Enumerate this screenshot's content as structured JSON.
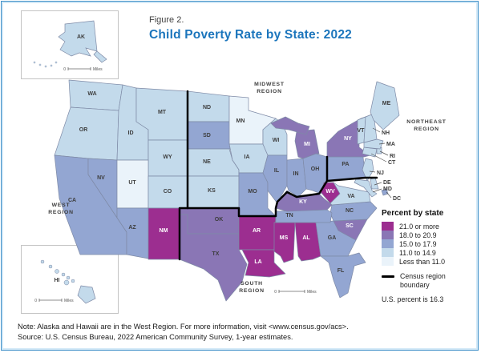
{
  "title": {
    "figure": "Figure 2.",
    "text": "Child Poverty Rate by State: 2022",
    "color": "#1b75bc"
  },
  "region_labels": {
    "west": "WEST REGION",
    "midwest": "MIDWEST REGION",
    "northeast": "NORTHEAST REGION",
    "south": "SOUTH REGION"
  },
  "legend": {
    "title": "Percent by state",
    "classes": [
      {
        "label": "21.0 or more",
        "color": "#9c2e90"
      },
      {
        "label": "18.0 to 20.9",
        "color": "#8a76b5"
      },
      {
        "label": "15.0 to 17.9",
        "color": "#93a6d2"
      },
      {
        "label": "11.0 to 14.9",
        "color": "#c3daeb"
      },
      {
        "label": "Less than 11.0",
        "color": "#eaf3fa"
      }
    ],
    "boundary_label": "Census region boundary",
    "boundary_color": "#000000",
    "us_percent": "U.S. percent is 16.3"
  },
  "scale": {
    "zero": "0",
    "unit": "Miles"
  },
  "insets": {
    "ak": "AK",
    "hi": "HI"
  },
  "chart_data": {
    "type": "heatmap",
    "title": "Child Poverty Rate by State: 2022",
    "legend_title": "Percent by state",
    "bins": [
      "21.0 or more",
      "18.0 to 20.9",
      "15.0 to 17.9",
      "11.0 to 14.9",
      "Less than 11.0"
    ],
    "us_percent": 16.3,
    "notes": "Alaska and Hawaii are in the West Region."
  },
  "map": {
    "states": [
      {
        "abbr": "WA",
        "cat": 3
      },
      {
        "abbr": "OR",
        "cat": 3
      },
      {
        "abbr": "CA",
        "cat": 2
      },
      {
        "abbr": "NV",
        "cat": 2
      },
      {
        "abbr": "ID",
        "cat": 3
      },
      {
        "abbr": "MT",
        "cat": 3
      },
      {
        "abbr": "WY",
        "cat": 3
      },
      {
        "abbr": "UT",
        "cat": 4
      },
      {
        "abbr": "CO",
        "cat": 3
      },
      {
        "abbr": "AZ",
        "cat": 2
      },
      {
        "abbr": "NM",
        "cat": 0
      },
      {
        "abbr": "ND",
        "cat": 3
      },
      {
        "abbr": "SD",
        "cat": 2
      },
      {
        "abbr": "NE",
        "cat": 3
      },
      {
        "abbr": "KS",
        "cat": 3
      },
      {
        "abbr": "MN",
        "cat": 4
      },
      {
        "abbr": "IA",
        "cat": 3
      },
      {
        "abbr": "MO",
        "cat": 2
      },
      {
        "abbr": "WI",
        "cat": 3
      },
      {
        "abbr": "IL",
        "cat": 2
      },
      {
        "abbr": "IN",
        "cat": 2
      },
      {
        "abbr": "OH",
        "cat": 2
      },
      {
        "abbr": "MI",
        "cat": 1
      },
      {
        "abbr": "OK",
        "cat": 1
      },
      {
        "abbr": "TX",
        "cat": 1
      },
      {
        "abbr": "AR",
        "cat": 0
      },
      {
        "abbr": "LA",
        "cat": 0
      },
      {
        "abbr": "MS",
        "cat": 0
      },
      {
        "abbr": "AL",
        "cat": 0
      },
      {
        "abbr": "GA",
        "cat": 2
      },
      {
        "abbr": "FL",
        "cat": 2
      },
      {
        "abbr": "SC",
        "cat": 1
      },
      {
        "abbr": "NC",
        "cat": 2
      },
      {
        "abbr": "TN",
        "cat": 2
      },
      {
        "abbr": "KY",
        "cat": 1
      },
      {
        "abbr": "WV",
        "cat": 0
      },
      {
        "abbr": "VA",
        "cat": 3
      },
      {
        "abbr": "PA",
        "cat": 2
      },
      {
        "abbr": "NY",
        "cat": 1
      },
      {
        "abbr": "NJ",
        "cat": 3
      },
      {
        "abbr": "CT",
        "cat": 3
      },
      {
        "abbr": "RI",
        "cat": 3
      },
      {
        "abbr": "MA",
        "cat": 3
      },
      {
        "abbr": "VT",
        "cat": 3
      },
      {
        "abbr": "NH",
        "cat": 3
      },
      {
        "abbr": "ME",
        "cat": 3
      },
      {
        "abbr": "DE",
        "cat": 3
      },
      {
        "abbr": "MD",
        "cat": 3
      },
      {
        "abbr": "DC",
        "cat": 2
      },
      {
        "abbr": "AK",
        "cat": 3
      },
      {
        "abbr": "HI",
        "cat": 3
      }
    ]
  },
  "notes": [
    "Note: Alaska and Hawaii are in the West Region. For more information, visit <www.census.gov/acs>.",
    "Source: U.S. Census Bureau, 2022 American Community Survey, 1-year estimates."
  ]
}
